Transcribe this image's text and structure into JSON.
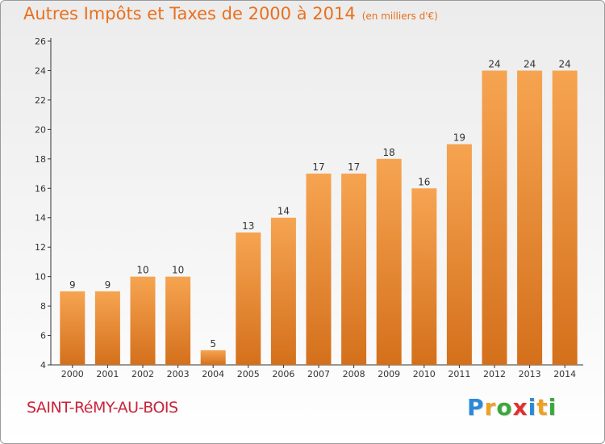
{
  "chart_data": {
    "type": "bar",
    "title": "Autres Impôts et Taxes de 2000 à 2014",
    "subtitle": "(en milliers d'€)",
    "categories": [
      "2000",
      "2001",
      "2002",
      "2003",
      "2004",
      "2005",
      "2006",
      "2007",
      "2008",
      "2009",
      "2010",
      "2011",
      "2012",
      "2013",
      "2014"
    ],
    "values": [
      9,
      9,
      10,
      10,
      5,
      13,
      14,
      17,
      17,
      18,
      16,
      19,
      24,
      24,
      24
    ],
    "ylim": [
      4,
      26
    ],
    "yticks": [
      4,
      6,
      8,
      10,
      12,
      14,
      16,
      18,
      20,
      22,
      24,
      26
    ],
    "grid": false,
    "bar_color": "#f08a2a"
  },
  "footer": {
    "commune": "SAINT-RéMY-AU-BOIS",
    "logo": "Proxiti",
    "logo_letters": [
      {
        "ch": "P",
        "color": "#2a8ad8"
      },
      {
        "ch": "r",
        "color": "#f0a020"
      },
      {
        "ch": "o",
        "color": "#3aa83a"
      },
      {
        "ch": "x",
        "color": "#e03030"
      },
      {
        "ch": "i",
        "color": "#2a8ad8"
      },
      {
        "ch": "t",
        "color": "#f0a020"
      },
      {
        "ch": "i",
        "color": "#3aa83a"
      }
    ]
  }
}
